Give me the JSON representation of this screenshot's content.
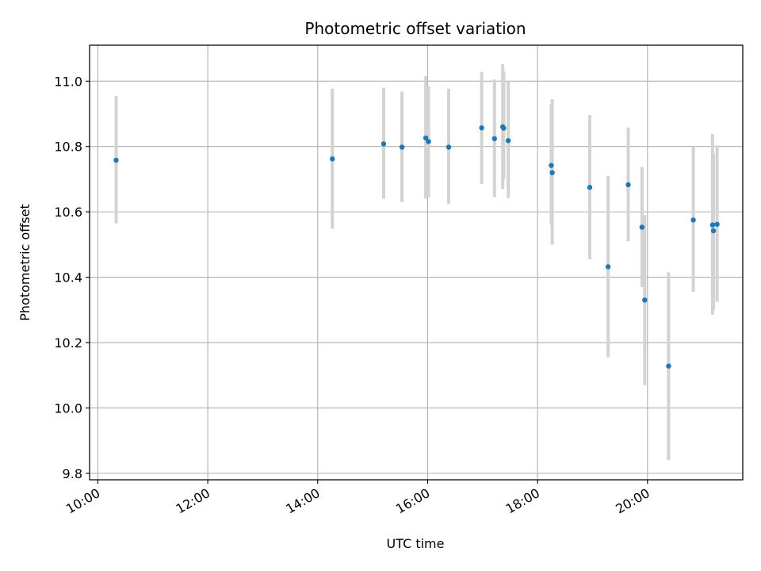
{
  "chart_data": {
    "type": "scatter",
    "title": "Photometric offset variation",
    "xlabel": "UTC time",
    "ylabel": "Photometric offset",
    "x_ticks": [
      "10:00",
      "12:00",
      "14:00",
      "16:00",
      "18:00",
      "20:00"
    ],
    "y_ticks": [
      "9.8",
      "10.0",
      "10.2",
      "10.4",
      "10.6",
      "10.8",
      "11.0"
    ],
    "xlim": [
      "09:51",
      "21:44"
    ],
    "ylim": [
      9.78,
      11.11
    ],
    "grid": true,
    "point_color": "#1f77b4",
    "errorbar_color": "#d3d3d3",
    "points": [
      {
        "x": "10:20",
        "y": 10.758,
        "low": 10.565,
        "high": 10.955
      },
      {
        "x": "14:16",
        "y": 10.762,
        "low": 10.548,
        "high": 10.977
      },
      {
        "x": "15:12",
        "y": 10.808,
        "low": 10.64,
        "high": 10.98
      },
      {
        "x": "15:32",
        "y": 10.798,
        "low": 10.63,
        "high": 10.968
      },
      {
        "x": "15:58",
        "y": 10.826,
        "low": 10.64,
        "high": 11.015
      },
      {
        "x": "16:01",
        "y": 10.815,
        "low": 10.645,
        "high": 10.985
      },
      {
        "x": "16:23",
        "y": 10.798,
        "low": 10.625,
        "high": 10.977
      },
      {
        "x": "16:59",
        "y": 10.857,
        "low": 10.685,
        "high": 11.028
      },
      {
        "x": "17:13",
        "y": 10.824,
        "low": 10.645,
        "high": 11.005
      },
      {
        "x": "17:22",
        "y": 10.86,
        "low": 10.67,
        "high": 11.052
      },
      {
        "x": "17:23",
        "y": 10.856,
        "low": 10.7,
        "high": 11.03
      },
      {
        "x": "17:28",
        "y": 10.818,
        "low": 10.642,
        "high": 11.0
      },
      {
        "x": "18:15",
        "y": 10.742,
        "low": 10.56,
        "high": 10.93
      },
      {
        "x": "18:16",
        "y": 10.72,
        "low": 10.5,
        "high": 10.945
      },
      {
        "x": "18:57",
        "y": 10.675,
        "low": 10.455,
        "high": 10.896
      },
      {
        "x": "19:17",
        "y": 10.432,
        "low": 10.155,
        "high": 10.71
      },
      {
        "x": "19:39",
        "y": 10.683,
        "low": 10.51,
        "high": 10.858
      },
      {
        "x": "19:54",
        "y": 10.553,
        "low": 10.37,
        "high": 10.737
      },
      {
        "x": "19:57",
        "y": 10.33,
        "low": 10.07,
        "high": 10.59
      },
      {
        "x": "20:23",
        "y": 10.128,
        "low": 9.84,
        "high": 10.415
      },
      {
        "x": "20:50",
        "y": 10.575,
        "low": 10.355,
        "high": 10.8
      },
      {
        "x": "21:11",
        "y": 10.56,
        "low": 10.285,
        "high": 10.838
      },
      {
        "x": "21:12",
        "y": 10.542,
        "low": 10.3,
        "high": 10.78
      },
      {
        "x": "21:16",
        "y": 10.562,
        "low": 10.325,
        "high": 10.803
      }
    ]
  }
}
